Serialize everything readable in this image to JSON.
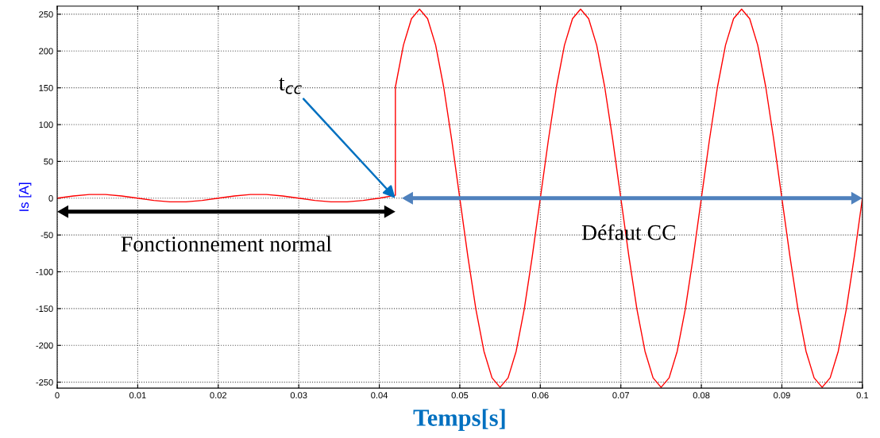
{
  "chart_data": {
    "type": "line",
    "xlabel": "Temps[s]",
    "ylabel": "Is [A]",
    "xlim": [
      0,
      0.1
    ],
    "ylim": [
      -258,
      261
    ],
    "xticks": [
      0,
      0.01,
      0.02,
      0.03,
      0.04,
      0.05,
      0.06,
      0.07,
      0.08,
      0.09,
      0.1
    ],
    "yticks": [
      -250,
      -200,
      -150,
      -100,
      -50,
      0,
      50,
      100,
      150,
      200,
      250
    ],
    "grid": true,
    "marker": "none",
    "line_style": "solid",
    "series": [
      {
        "color": "#ff0000",
        "x": [
          0,
          0.002,
          0.004,
          0.006,
          0.008,
          0.01,
          0.012,
          0.014,
          0.016,
          0.018,
          0.02,
          0.022,
          0.024,
          0.026,
          0.028,
          0.03,
          0.032,
          0.034,
          0.036,
          0.038,
          0.04,
          0.042,
          0.042,
          0.043,
          0.044,
          0.045,
          0.046,
          0.047,
          0.048,
          0.049,
          0.05,
          0.051,
          0.052,
          0.053,
          0.054,
          0.055,
          0.056,
          0.057,
          0.058,
          0.059,
          0.06,
          0.061,
          0.062,
          0.063,
          0.064,
          0.065,
          0.066,
          0.067,
          0.068,
          0.069,
          0.07,
          0.071,
          0.072,
          0.073,
          0.074,
          0.075,
          0.076,
          0.077,
          0.078,
          0.079,
          0.08,
          0.081,
          0.082,
          0.083,
          0.084,
          0.085,
          0.086,
          0.087,
          0.088,
          0.089,
          0.09,
          0.091,
          0.092,
          0.093,
          0.094,
          0.095,
          0.096,
          0.097,
          0.098,
          0.099,
          0.1
        ],
        "values": [
          0,
          3,
          5,
          5,
          3,
          0,
          -3,
          -5,
          -5,
          -3,
          0,
          3,
          5,
          5,
          3,
          0,
          -3,
          -5,
          -5,
          -3,
          0,
          4,
          151,
          208,
          244,
          257,
          244,
          208,
          151,
          79,
          0,
          -79,
          -151,
          -208,
          -244,
          -257,
          -244,
          -208,
          -151,
          -79,
          0,
          79,
          151,
          208,
          244,
          257,
          244,
          208,
          151,
          79,
          0,
          -79,
          -151,
          -208,
          -244,
          -257,
          -244,
          -208,
          -151,
          -79,
          0,
          79,
          151,
          208,
          244,
          257,
          244,
          208,
          151,
          79,
          0,
          -79,
          -151,
          -208,
          -244,
          -257,
          -244,
          -208,
          -151,
          -79,
          0
        ]
      }
    ],
    "annotations": [
      {
        "text": "t$_{cc}$",
        "x": 0.042,
        "y": 0
      },
      "Fonctionnement normal",
      "Défaut CC"
    ]
  }
}
